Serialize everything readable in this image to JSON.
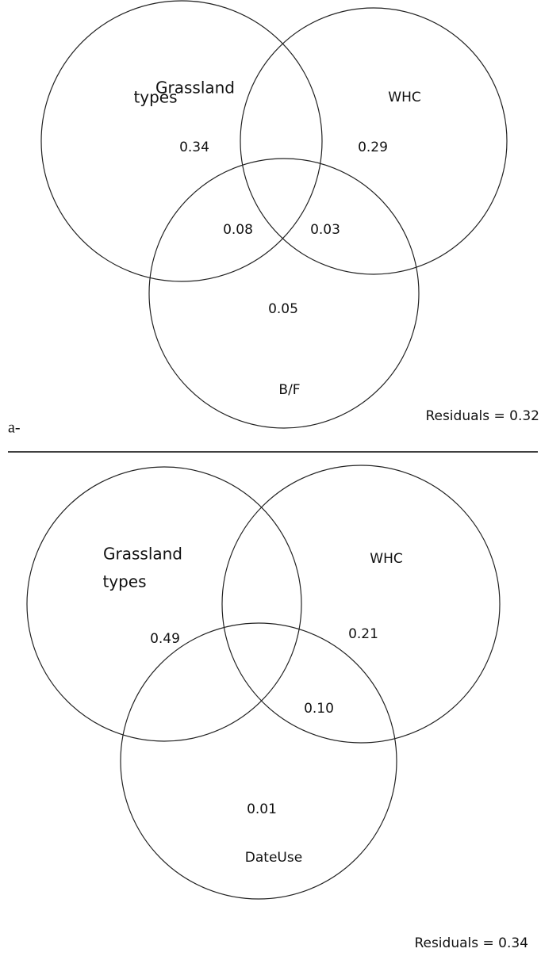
{
  "panels": [
    {
      "tag": "a-",
      "sets": [
        {
          "label": [
            "Grassland",
            "types"
          ]
        },
        {
          "label": [
            "WHC"
          ]
        },
        {
          "label": [
            "B/F"
          ]
        }
      ],
      "regions": [
        "0.34",
        "0.29",
        "0.08",
        "0.03",
        "0.05"
      ],
      "residuals": "Residuals = 0.32"
    },
    {
      "sets": [
        {
          "label": [
            "Grassland",
            "types"
          ]
        },
        {
          "label": [
            "WHC"
          ]
        },
        {
          "label": [
            "DateUse"
          ]
        }
      ],
      "regions": [
        "0.49",
        "0.21",
        "0.10",
        "0.01"
      ],
      "residuals": "Residuals =  0.34"
    }
  ]
}
